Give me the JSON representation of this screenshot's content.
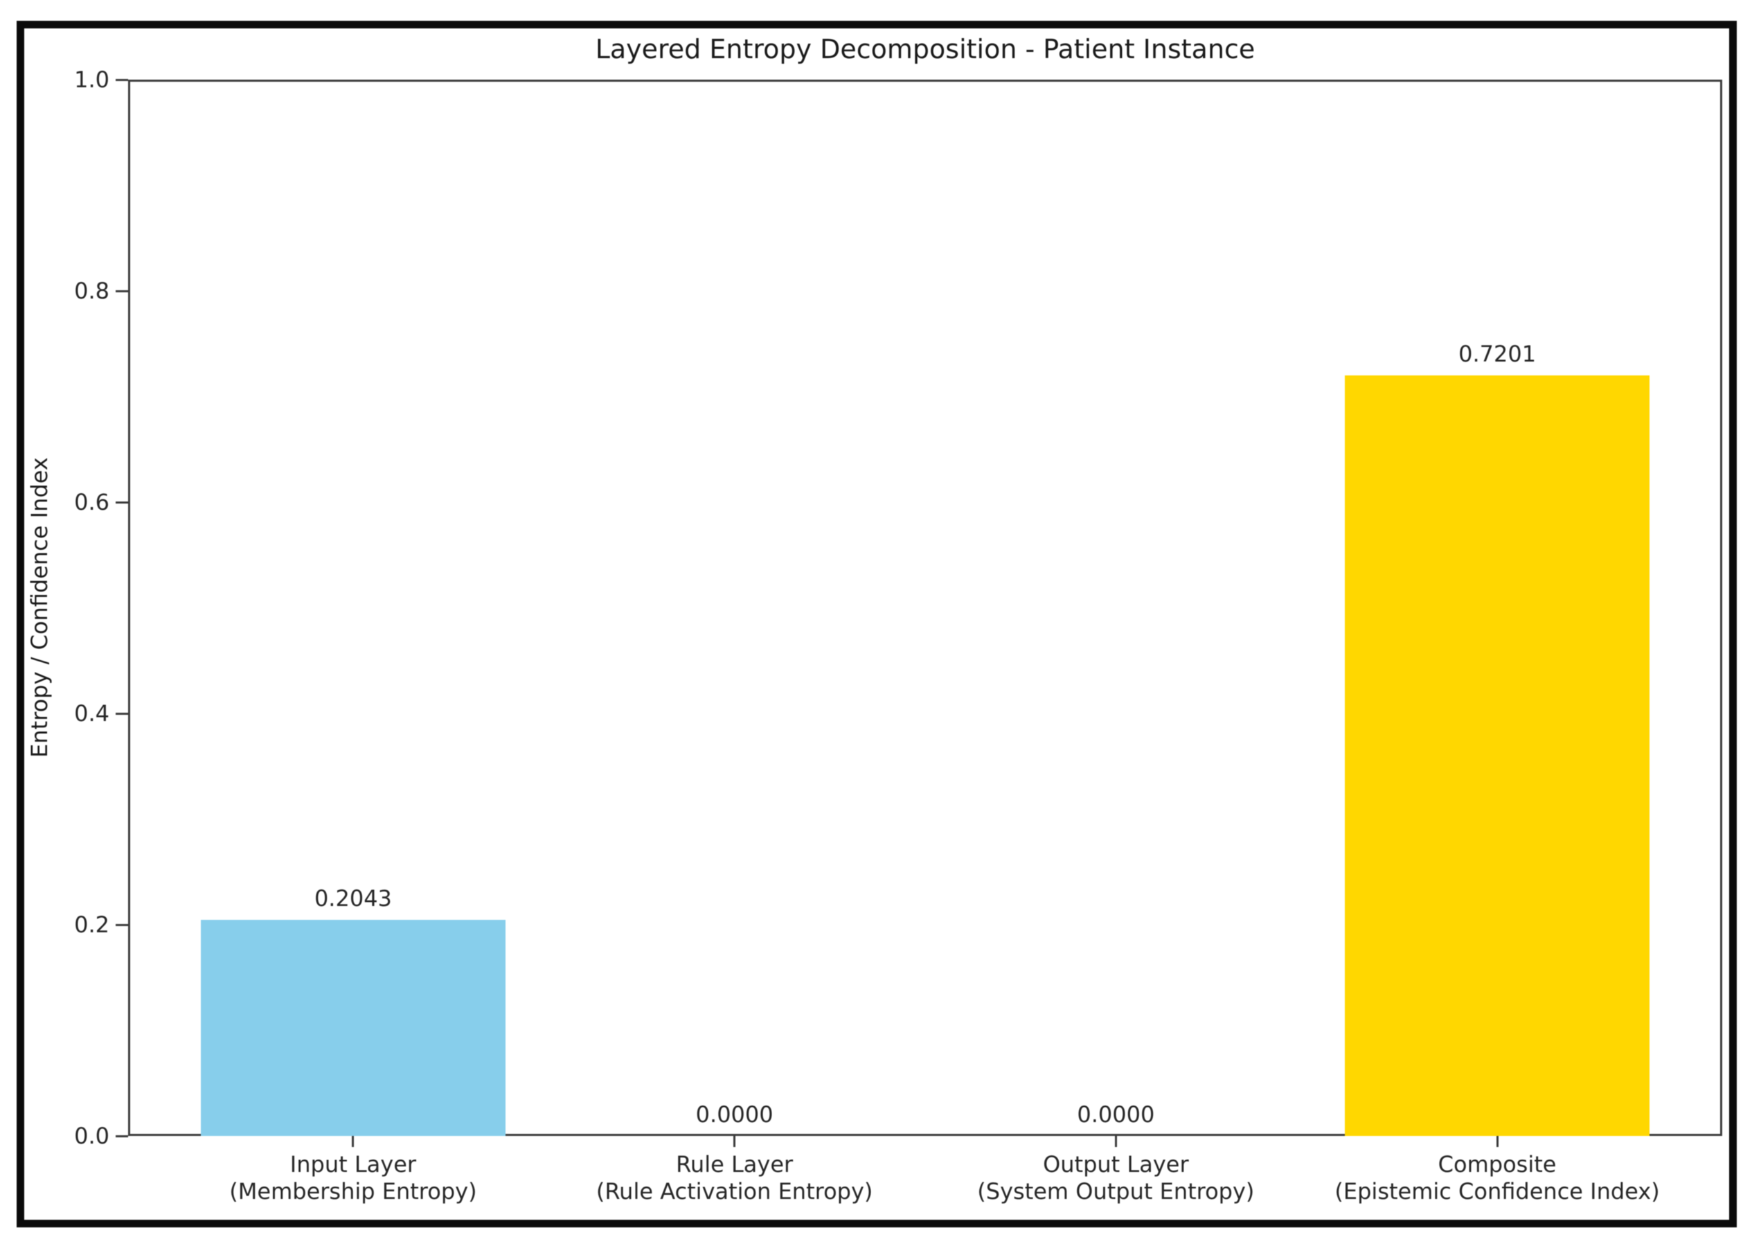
{
  "frame": {
    "border_color": "#0b0b0b",
    "background": "#ffffff"
  },
  "chart_data": {
    "type": "bar",
    "title": "Layered Entropy Decomposition - Patient Instance",
    "xlabel": "",
    "ylabel": "Entropy / Confidence Index",
    "ylim": [
      0.0,
      1.0
    ],
    "yticks": [
      "0.0",
      "0.2",
      "0.4",
      "0.6",
      "0.8",
      "1.0"
    ],
    "grid": false,
    "legend": "none",
    "categories": [
      "Input Layer\n(Membership Entropy)",
      "Rule Layer\n(Rule Activation Entropy)",
      "Output Layer\n(System Output Entropy)",
      "Composite\n(Epistemic Confidence Index)"
    ],
    "values": [
      0.2043,
      0.0,
      0.0,
      0.7201
    ],
    "value_labels": [
      "0.2043",
      "0.0000",
      "0.0000",
      "0.7201"
    ],
    "bar_colors": [
      "#87CEEB",
      "#87CEEB",
      "#87CEEB",
      "#FFD700"
    ],
    "spine_color": "#3b3b3b",
    "text_color": "#262626"
  }
}
